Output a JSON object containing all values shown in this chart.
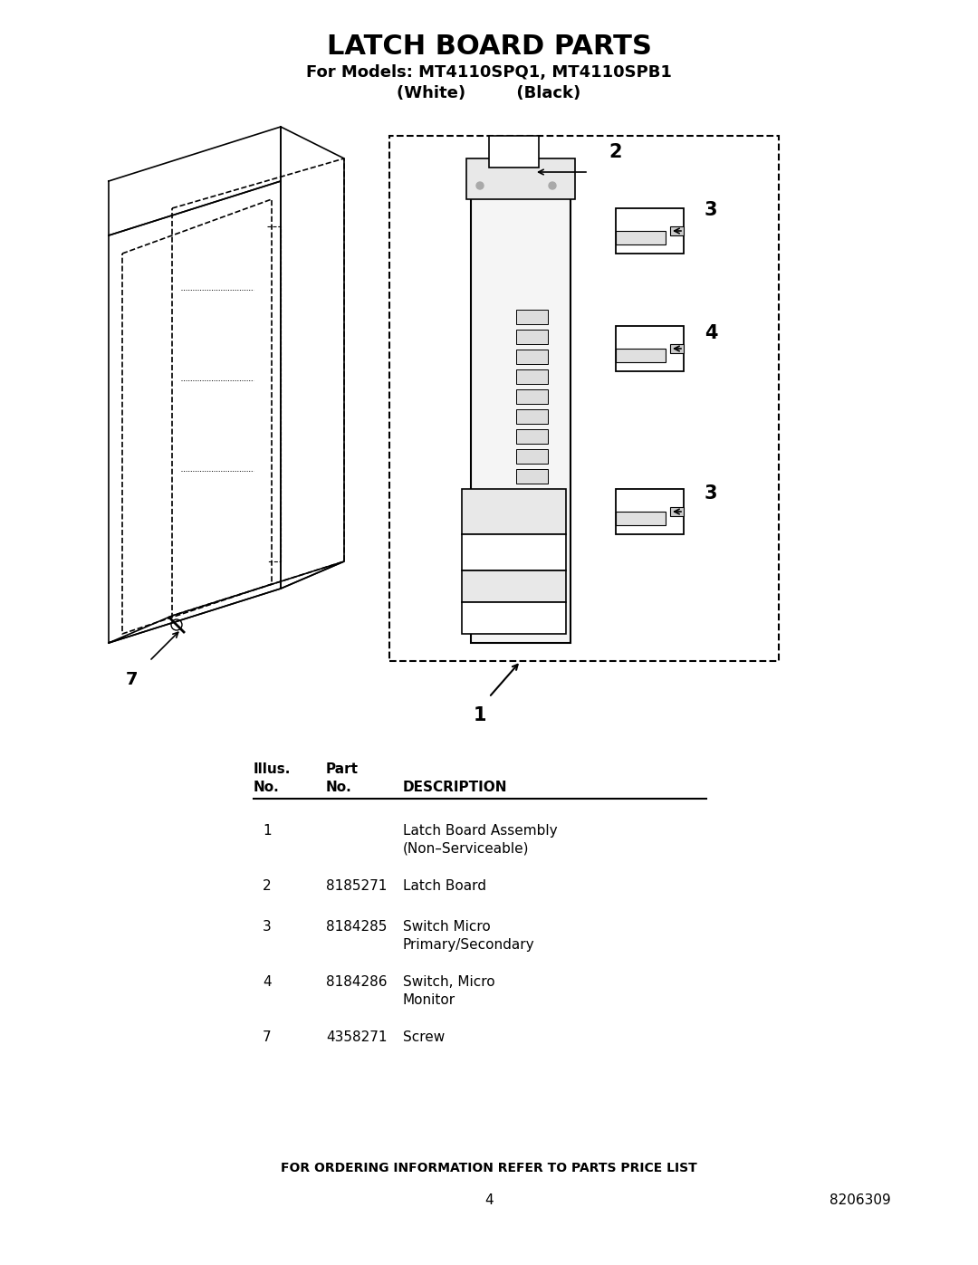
{
  "title": "LATCH BOARD PARTS",
  "subtitle1": "For Models: MT4110SPQ1, MT4110SPB1",
  "subtitle2": "(White)         (Black)",
  "bg_color": "#ffffff",
  "title_fontsize": 22,
  "subtitle_fontsize": 13,
  "table_header": [
    "Illus.\nNo.",
    "Part\nNo.",
    "DESCRIPTION"
  ],
  "table_rows": [
    [
      "1",
      "",
      "Latch Board Assembly\n(Non–Serviceable)"
    ],
    [
      "2",
      "8185271",
      "Latch Board"
    ],
    [
      "3",
      "8184285",
      "Switch Micro\nPrimary/Secondary"
    ],
    [
      "4",
      "8184286",
      "Switch, Micro\nMonitor"
    ],
    [
      "7",
      "4358271",
      "Screw"
    ]
  ],
  "footer_text": "FOR ORDERING INFORMATION REFER TO PARTS PRICE LIST",
  "page_number": "4",
  "doc_number": "8206309"
}
